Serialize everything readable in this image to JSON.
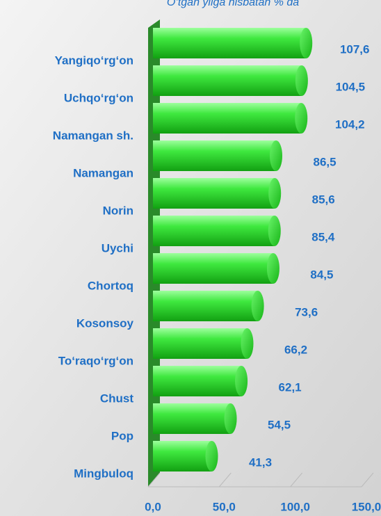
{
  "chart_data": {
    "type": "bar",
    "orientation": "horizontal",
    "subtitle": "O‘tgan yilga nisbatan % da",
    "categories": [
      "Yangiqo‘rg‘on",
      "Uchqo‘rg‘on",
      "Namangan sh.",
      "Namangan",
      "Norin",
      "Uychi",
      "Chortoq",
      "Kosonsoy",
      "To‘raqo‘rg‘on",
      "Chust",
      "Pop",
      "Mingbuloq"
    ],
    "values": [
      107.6,
      104.5,
      104.2,
      86.5,
      85.6,
      85.4,
      84.5,
      73.6,
      66.2,
      62.1,
      54.5,
      41.3
    ],
    "value_labels": [
      "107,6",
      "104,5",
      "104,2",
      "86,5",
      "85,6",
      "85,4",
      "84,5",
      "73,6",
      "66,2",
      "62,1",
      "54,5",
      "41,3"
    ],
    "color": "#2fd12f",
    "xlim": [
      0,
      150
    ],
    "xticks": [
      {
        "value": 0,
        "label": "0,0"
      },
      {
        "value": 50,
        "label": "50,0"
      },
      {
        "value": 100,
        "label": "100,0"
      },
      {
        "value": 150,
        "label": "150,0"
      }
    ],
    "grid": true
  }
}
